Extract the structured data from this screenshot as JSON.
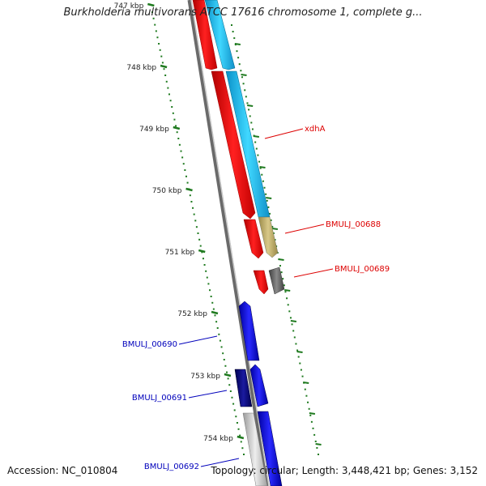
{
  "title": "Burkholderia multivorans ATCC 17616 chromosome 1, complete g...",
  "footer": {
    "accession": "Accession: NC_010804",
    "stats": "Topology: circular; Length: 3,448,421 bp; Genes: 3,152"
  },
  "colors": {
    "backbone": "#8a8a8a",
    "ticks": "#1f7a1f",
    "gene_red": "#ff0000",
    "gene_cyan": "#1ec8f0",
    "gene_tan": "#c8b870",
    "gene_gray": "#707070",
    "gene_blue": "#0000ee",
    "gene_navy": "#000080",
    "gene_lightgray": "#c8c8c8",
    "label_red": "#dd0000",
    "label_blue": "#0000bb"
  },
  "scale_ticks": [
    {
      "label": "747 kbp"
    },
    {
      "label": "748 kbp"
    },
    {
      "label": "749 kbp"
    },
    {
      "label": "750 kbp"
    },
    {
      "label": "751 kbp"
    },
    {
      "label": "752 kbp"
    },
    {
      "label": "753 kbp"
    },
    {
      "label": "754 kbp"
    }
  ],
  "gene_labels": [
    {
      "text": "xdhA",
      "color": "label_red"
    },
    {
      "text": "BMULJ_00688",
      "color": "label_red"
    },
    {
      "text": "BMULJ_00689",
      "color": "label_red"
    },
    {
      "text": "BMULJ_00690",
      "color": "label_blue"
    },
    {
      "text": "BMULJ_00691",
      "color": "label_blue"
    },
    {
      "text": "BMULJ_00692",
      "color": "label_blue"
    }
  ]
}
